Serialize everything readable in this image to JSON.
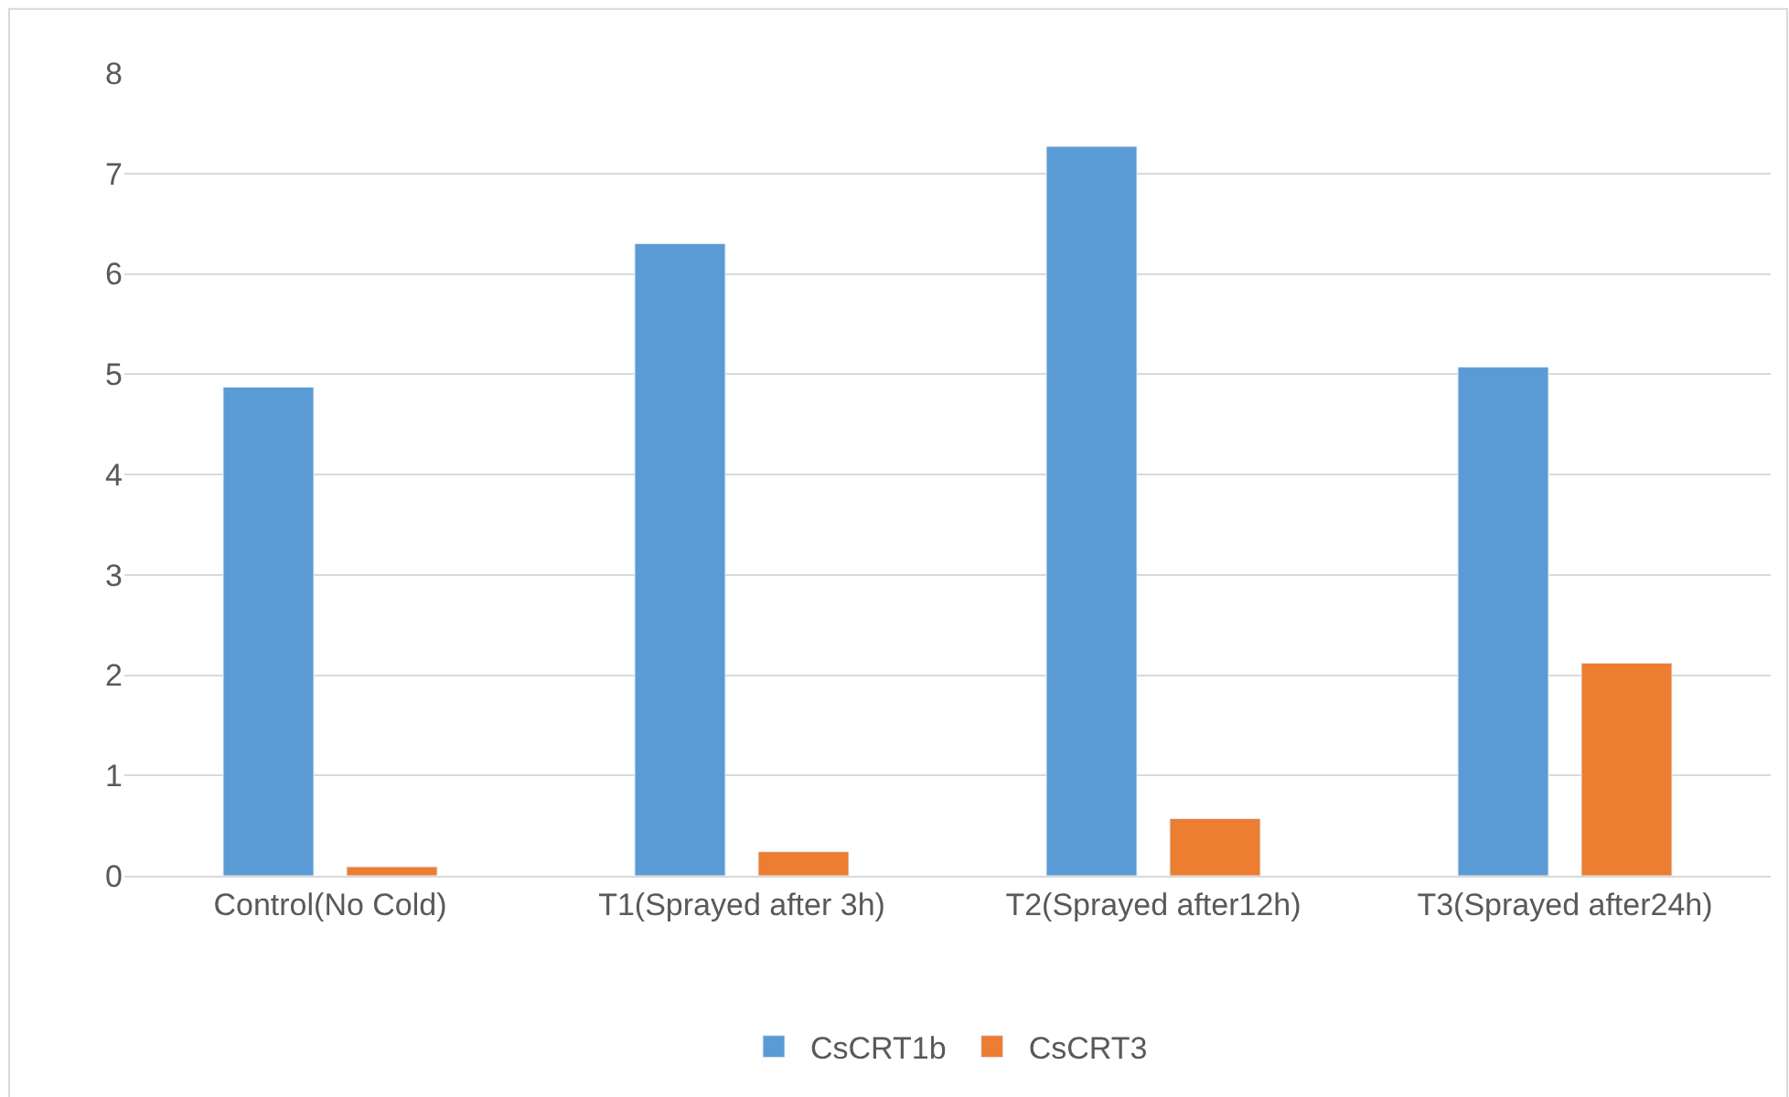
{
  "chart_data": {
    "type": "bar",
    "categories": [
      "Control(No Cold)",
      "T1(Sprayed after 3h)",
      "T2(Sprayed after12h)",
      "T3(Sprayed after24h)"
    ],
    "series": [
      {
        "name": "CsCRT1b",
        "color": "#5b9bd5",
        "values": [
          4.87,
          6.3,
          7.27,
          5.07
        ]
      },
      {
        "name": "CsCRT3",
        "color": "#ed7d31",
        "values": [
          0.09,
          0.24,
          0.57,
          2.12
        ]
      }
    ],
    "ylim": [
      0,
      8
    ],
    "yticks": [
      0,
      1,
      2,
      3,
      4,
      5,
      6,
      7,
      8
    ],
    "grid": "y",
    "legend": "bottom"
  }
}
